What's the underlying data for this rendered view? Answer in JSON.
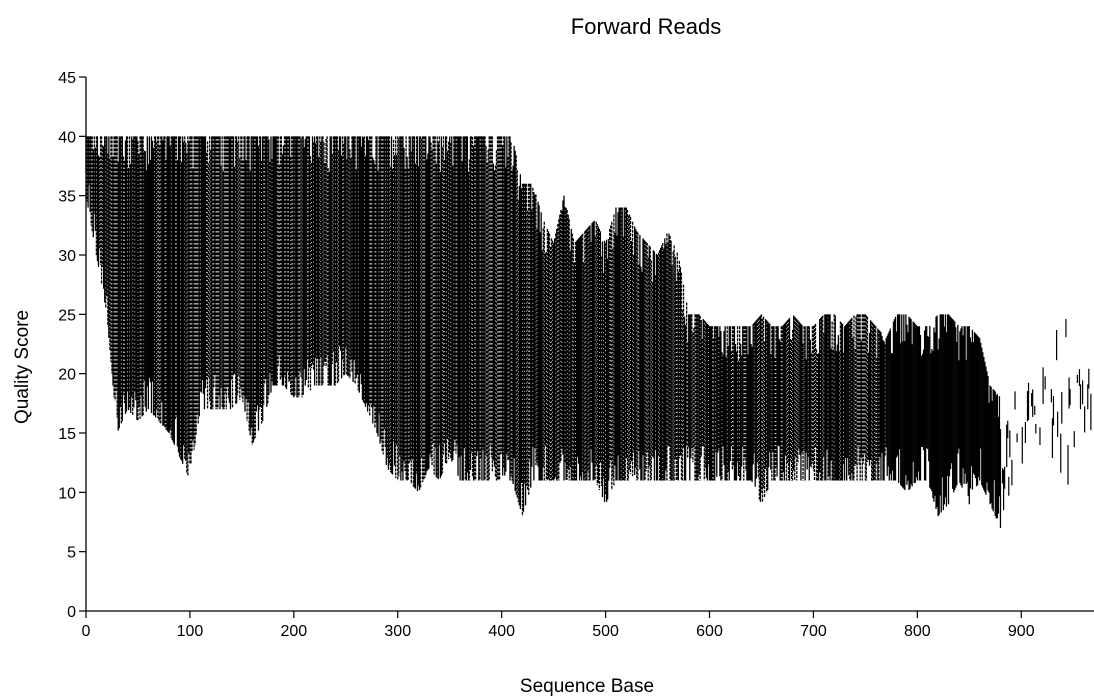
{
  "chart_data": {
    "type": "line",
    "title": "Forward Reads",
    "xlabel": "Sequence Base",
    "ylabel": "Quality Score",
    "xlim": [
      0,
      970
    ],
    "ylim": [
      0,
      45
    ],
    "xticks": [
      0,
      100,
      200,
      300,
      400,
      500,
      600,
      700,
      800,
      900
    ],
    "yticks": [
      0,
      5,
      10,
      15,
      20,
      25,
      30,
      35,
      40,
      45
    ],
    "grid": false,
    "legend": "none",
    "line_color": "#000000",
    "profile": {
      "x": [
        0,
        10,
        20,
        30,
        40,
        50,
        60,
        70,
        80,
        90,
        100,
        110,
        120,
        130,
        140,
        150,
        160,
        170,
        180,
        190,
        200,
        210,
        220,
        230,
        240,
        250,
        260,
        270,
        280,
        290,
        300,
        310,
        320,
        330,
        340,
        350,
        360,
        370,
        380,
        390,
        400,
        410,
        420,
        430,
        440,
        450,
        460,
        470,
        480,
        490,
        500,
        510,
        520,
        530,
        540,
        550,
        560,
        570,
        580,
        590,
        600,
        610,
        620,
        630,
        640,
        650,
        660,
        670,
        680,
        690,
        700,
        710,
        720,
        730,
        740,
        750,
        760,
        770,
        780,
        790,
        800,
        810,
        820,
        830,
        840,
        850,
        860,
        870,
        880,
        890,
        900,
        910,
        920,
        930,
        940,
        950,
        960,
        970
      ],
      "q_max": [
        40,
        40,
        40,
        40,
        40,
        40,
        40,
        40,
        40,
        40,
        40,
        40,
        40,
        40,
        40,
        40,
        40,
        40,
        40,
        40,
        40,
        40,
        40,
        40,
        40,
        40,
        40,
        40,
        40,
        40,
        40,
        40,
        40,
        40,
        40,
        40,
        40,
        40,
        40,
        40,
        40,
        40,
        36,
        36,
        33,
        31,
        35,
        31,
        32,
        33,
        31,
        34,
        34,
        32,
        31,
        30,
        32,
        30,
        25,
        25,
        24,
        24,
        24,
        24,
        24,
        25,
        24,
        24,
        25,
        24,
        24,
        25,
        25,
        24,
        25,
        25,
        24,
        23,
        25,
        25,
        24,
        24,
        25,
        25,
        24,
        24,
        23,
        19,
        18,
        18,
        18,
        19,
        20,
        22,
        26,
        24,
        22,
        21
      ],
      "q_min": [
        35,
        30,
        25,
        15,
        17,
        16,
        17,
        16,
        15,
        13,
        11,
        17,
        17,
        17,
        17,
        18,
        14,
        16,
        19,
        19,
        18,
        18,
        19,
        19,
        19,
        20,
        19,
        17,
        15,
        12,
        11,
        11,
        10,
        12,
        11,
        13,
        11,
        11,
        11,
        11,
        11,
        11,
        8,
        11,
        11,
        11,
        11,
        11,
        11,
        11,
        9,
        11,
        11,
        11,
        11,
        11,
        11,
        11,
        11,
        11,
        11,
        11,
        11,
        11,
        11,
        9,
        11,
        11,
        11,
        11,
        11,
        11,
        11,
        11,
        11,
        11,
        11,
        11,
        11,
        10,
        11,
        11,
        8,
        9,
        11,
        9,
        11,
        9,
        7,
        11,
        12,
        14,
        14,
        12,
        11,
        13,
        11,
        10
      ]
    }
  }
}
